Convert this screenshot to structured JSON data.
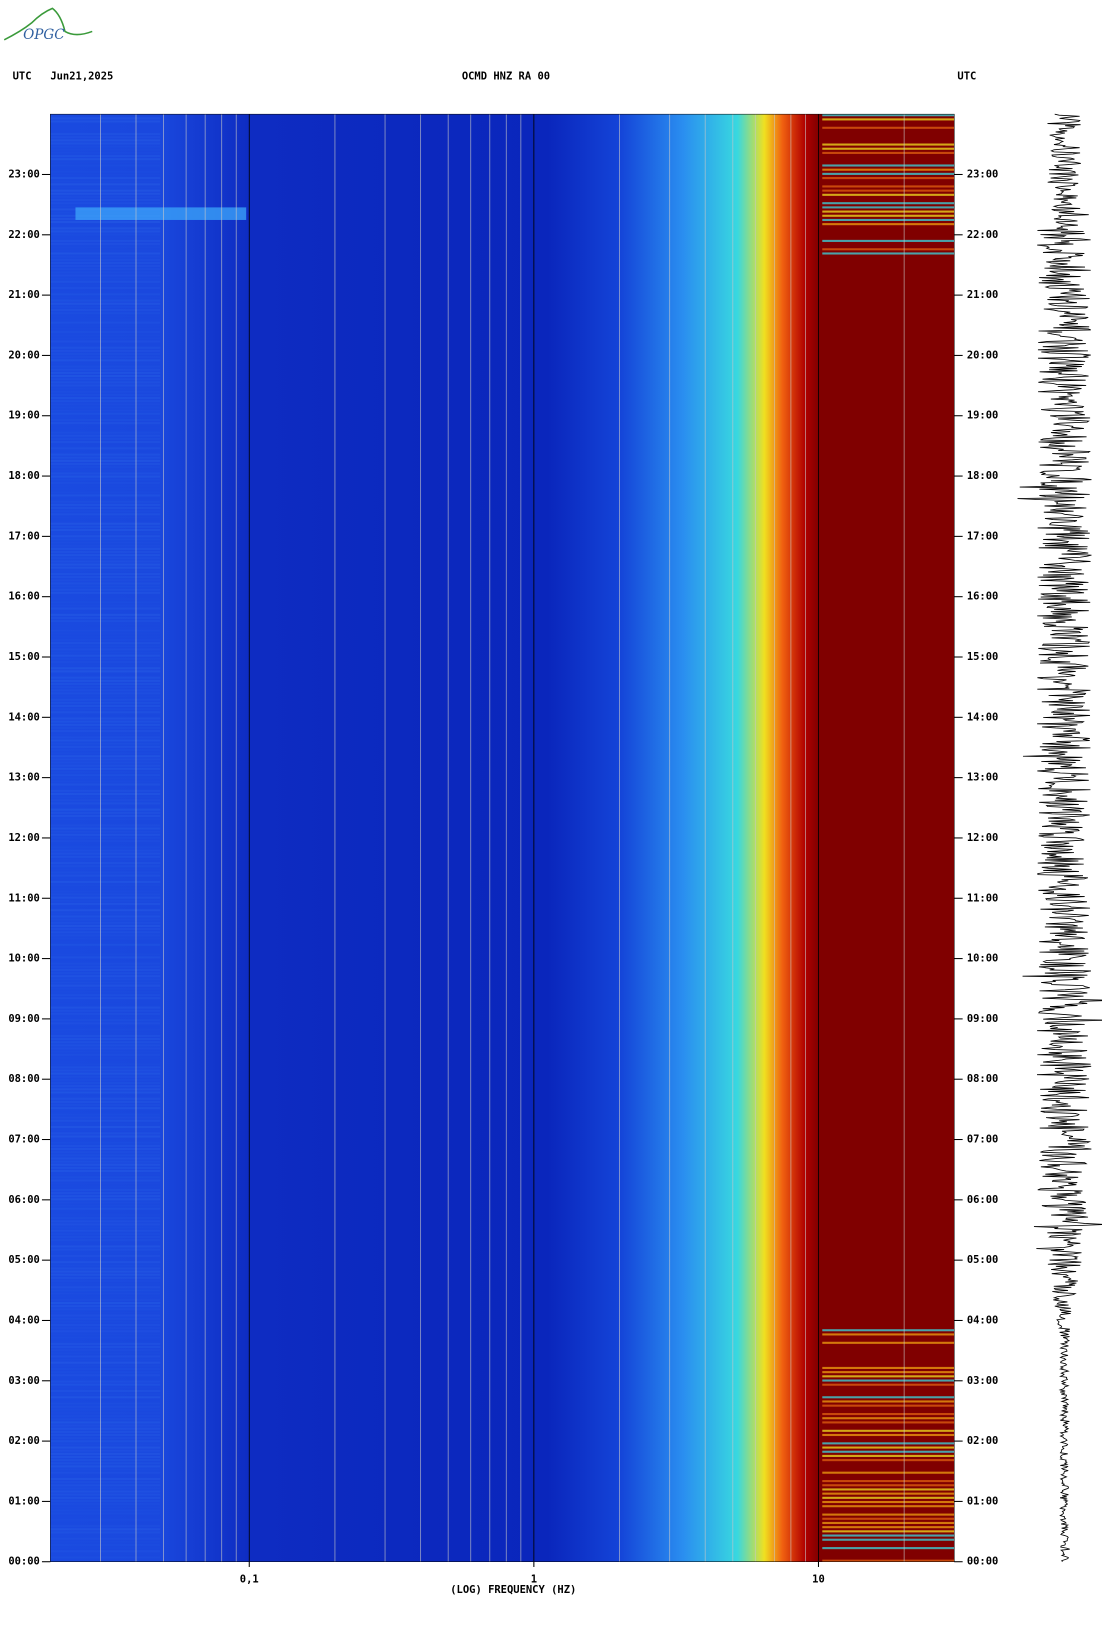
{
  "chart_data": {
    "type": "spectrogram",
    "logo": "OPGC",
    "time_zone_left": "UTC",
    "date": "Jun21,2025",
    "title": "OCMD HNZ RA 00",
    "time_zone_right": "UTC",
    "xlabel": "(LOG) FREQUENCY (HZ)",
    "xscale": "log",
    "xlim": [
      0.02,
      30
    ],
    "xticks": [
      {
        "value": 0.1,
        "label": "0,1"
      },
      1,
      10
    ],
    "minor_xticks": [
      0.03,
      0.04,
      0.05,
      0.06,
      0.07,
      0.08,
      0.09,
      0.2,
      0.3,
      0.4,
      0.5,
      0.6,
      0.7,
      0.8,
      0.9,
      2,
      3,
      4,
      5,
      6,
      7,
      8,
      9,
      20
    ],
    "ylim": [
      0,
      24
    ],
    "yticks": [
      {
        "value": 0,
        "label": "00:00"
      },
      {
        "value": 1,
        "label": "01:00"
      },
      {
        "value": 2,
        "label": "02:00"
      },
      {
        "value": 3,
        "label": "03:00"
      },
      {
        "value": 4,
        "label": "04:00"
      },
      {
        "value": 5,
        "label": "05:00"
      },
      {
        "value": 6,
        "label": "06:00"
      },
      {
        "value": 7,
        "label": "07:00"
      },
      {
        "value": 8,
        "label": "08:00"
      },
      {
        "value": 9,
        "label": "09:00"
      },
      {
        "value": 10,
        "label": "10:00"
      },
      {
        "value": 11,
        "label": "11:00"
      },
      {
        "value": 12,
        "label": "12:00"
      },
      {
        "value": 13,
        "label": "13:00"
      },
      {
        "value": 14,
        "label": "14:00"
      },
      {
        "value": 15,
        "label": "15:00"
      },
      {
        "value": 16,
        "label": "16:00"
      },
      {
        "value": 17,
        "label": "17:00"
      },
      {
        "value": 18,
        "label": "18:00"
      },
      {
        "value": 19,
        "label": "19:00"
      },
      {
        "value": 20,
        "label": "20:00"
      },
      {
        "value": 21,
        "label": "21:00"
      },
      {
        "value": 22,
        "label": "22:00"
      },
      {
        "value": 23,
        "label": "23:00"
      }
    ]
  }
}
